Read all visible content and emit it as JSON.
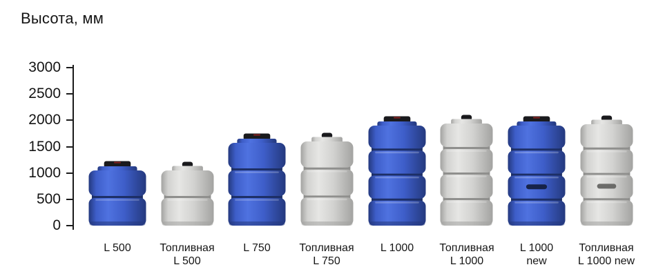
{
  "chart_data": {
    "type": "bar",
    "style": "pictorial-product-height-comparison",
    "title": "Высота, мм",
    "ylabel": "Высота, мм",
    "unit": "мм",
    "ylim": [
      0,
      3000
    ],
    "yticks": [
      0,
      500,
      1000,
      1500,
      2000,
      2500,
      3000
    ],
    "grid": false,
    "legend": "none",
    "categories": [
      "L 500",
      "Топливная L 500",
      "L 750",
      "Топливная L 750",
      "L 1000",
      "Топливная L 1000",
      "L 1000 new",
      "Топливная L 1000 new"
    ],
    "values": [
      1230,
      1230,
      1750,
      1780,
      2080,
      2120,
      2080,
      2110
    ],
    "bars": [
      {
        "label_lines": [
          "L 500"
        ],
        "height_mm": 1230,
        "color": "blue",
        "sections": 2,
        "cap": "wide",
        "oval": false
      },
      {
        "label_lines": [
          "Топливная",
          "L 500"
        ],
        "height_mm": 1230,
        "color": "gray",
        "sections": 2,
        "cap": "small",
        "oval": false
      },
      {
        "label_lines": [
          "L 750"
        ],
        "height_mm": 1750,
        "color": "blue",
        "sections": 3,
        "cap": "wide",
        "oval": false
      },
      {
        "label_lines": [
          "Топливная",
          "L 750"
        ],
        "height_mm": 1780,
        "color": "gray",
        "sections": 3,
        "cap": "small",
        "oval": false
      },
      {
        "label_lines": [
          "L 1000"
        ],
        "height_mm": 2080,
        "color": "blue",
        "sections": 4,
        "cap": "wide",
        "oval": false
      },
      {
        "label_lines": [
          "Топливная",
          "L 1000"
        ],
        "height_mm": 2120,
        "color": "gray",
        "sections": 4,
        "cap": "small",
        "oval": false
      },
      {
        "label_lines": [
          "L 1000",
          "new"
        ],
        "height_mm": 2080,
        "color": "blue",
        "sections": 4,
        "cap": "wide",
        "oval": true
      },
      {
        "label_lines": [
          "Топливная",
          "L 1000 new"
        ],
        "height_mm": 2110,
        "color": "gray",
        "sections": 4,
        "cap": "small",
        "oval": true
      }
    ],
    "palette": {
      "axis": "#1a1a1a",
      "text": "#161616",
      "cap": "#1a1a1d",
      "cap_mark": "#7a2020",
      "blue": {
        "edge": "#24397e",
        "mid": "#3e5ec9",
        "light": "#4f72e0",
        "core": "#1d2f66",
        "oval": "#121c38"
      },
      "gray": {
        "edge": "#a3a3a1",
        "mid": "#d2d2d0",
        "light": "#e6e6e4",
        "core": "#8f8f8d",
        "oval": "#5f5f5d"
      }
    }
  }
}
